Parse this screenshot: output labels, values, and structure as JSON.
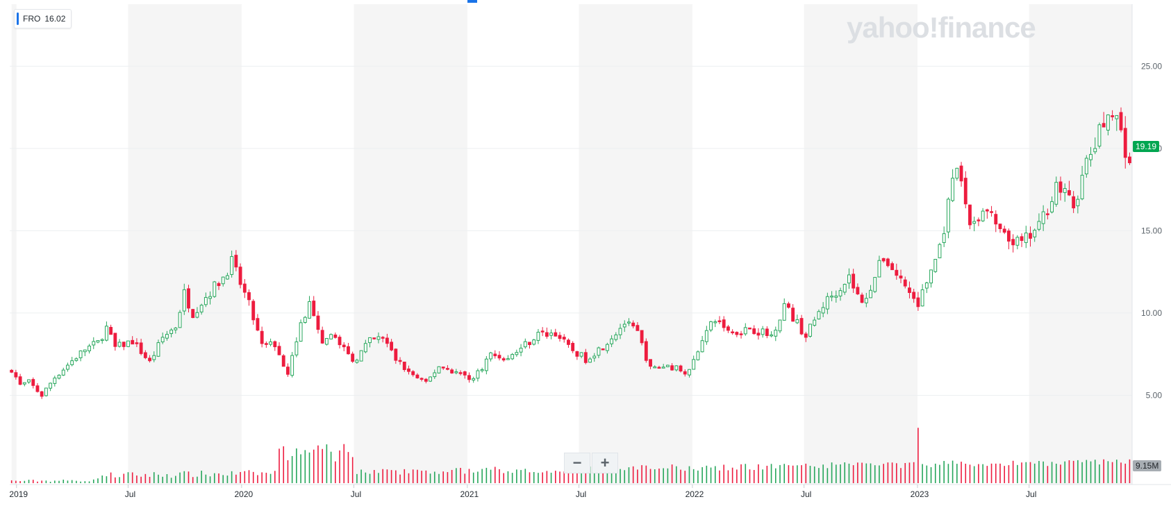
{
  "ticker": {
    "symbol": "FRO",
    "value": "16.02"
  },
  "brand": "yahoo!finance",
  "zoom": {
    "minus": "−",
    "plus": "+"
  },
  "last_price_label": "19.19",
  "last_volume_label": "9.15M",
  "colors": {
    "up": "#26a65b",
    "down": "#ed1c3f",
    "band": "#f5f5f5",
    "grid": "#eceff1",
    "price_tag": "#00a651"
  },
  "chart_data": {
    "type": "candlestick",
    "period": "weekly",
    "ylim": [
      3.5,
      27
    ],
    "yticks": [
      "5.00",
      "10.00",
      "15.00",
      "20.00",
      "25.00"
    ],
    "xticks": [
      "2019",
      "Jul",
      "2020",
      "Jul",
      "2021",
      "Jul",
      "2022",
      "Jul",
      "2023",
      "Jul"
    ],
    "first_week": "2018-12-24",
    "anchors": [
      [
        "2018-12-24",
        6.6
      ],
      [
        "2019-01-07",
        5.6
      ],
      [
        "2019-01-21",
        5.8
      ],
      [
        "2019-02-11",
        5.0
      ],
      [
        "2019-03-04",
        6.1
      ],
      [
        "2019-04-01",
        7.1
      ],
      [
        "2019-04-22",
        7.8
      ],
      [
        "2019-05-13",
        8.2
      ],
      [
        "2019-05-27",
        9.1
      ],
      [
        "2019-06-10",
        7.9
      ],
      [
        "2019-07-08",
        8.3
      ],
      [
        "2019-08-05",
        7.0
      ],
      [
        "2019-08-26",
        8.5
      ],
      [
        "2019-09-16",
        9.2
      ],
      [
        "2019-09-30",
        11.2
      ],
      [
        "2019-10-14",
        10.0
      ],
      [
        "2019-11-04",
        11.0
      ],
      [
        "2019-12-02",
        12.2
      ],
      [
        "2019-12-16",
        13.1
      ],
      [
        "2020-01-13",
        10.5
      ],
      [
        "2020-02-03",
        8.0
      ],
      [
        "2020-02-24",
        8.1
      ],
      [
        "2020-03-16",
        6.4
      ],
      [
        "2020-04-06",
        9.3
      ],
      [
        "2020-04-20",
        10.5
      ],
      [
        "2020-05-11",
        8.0
      ],
      [
        "2020-06-01",
        8.7
      ],
      [
        "2020-06-29",
        7.0
      ],
      [
        "2020-07-27",
        8.3
      ],
      [
        "2020-08-17",
        8.5
      ],
      [
        "2020-09-07",
        7.2
      ],
      [
        "2020-09-28",
        6.4
      ],
      [
        "2020-10-26",
        5.7
      ],
      [
        "2020-11-16",
        6.8
      ],
      [
        "2020-12-21",
        6.3
      ],
      [
        "2021-01-11",
        6.0
      ],
      [
        "2021-02-08",
        7.5
      ],
      [
        "2021-03-08",
        7.2
      ],
      [
        "2021-03-29",
        7.9
      ],
      [
        "2021-04-26",
        8.7
      ],
      [
        "2021-05-24",
        8.8
      ],
      [
        "2021-06-14",
        7.9
      ],
      [
        "2021-07-12",
        7.2
      ],
      [
        "2021-08-09",
        8.0
      ],
      [
        "2021-09-13",
        9.4
      ],
      [
        "2021-10-04",
        8.8
      ],
      [
        "2021-10-25",
        6.6
      ],
      [
        "2021-11-22",
        6.8
      ],
      [
        "2021-12-27",
        6.4
      ],
      [
        "2022-01-17",
        8.5
      ],
      [
        "2022-02-07",
        9.6
      ],
      [
        "2022-03-07",
        8.8
      ],
      [
        "2022-04-04",
        9.1
      ],
      [
        "2022-05-09",
        8.6
      ],
      [
        "2022-05-30",
        10.5
      ],
      [
        "2022-07-04",
        8.6
      ],
      [
        "2022-08-01",
        10.5
      ],
      [
        "2022-09-12",
        12.2
      ],
      [
        "2022-10-03",
        10.5
      ],
      [
        "2022-11-07",
        13.4
      ],
      [
        "2022-12-05",
        12.0
      ],
      [
        "2023-01-02",
        10.5
      ],
      [
        "2023-02-06",
        14.0
      ],
      [
        "2023-03-06",
        18.9
      ],
      [
        "2023-03-27",
        15.5
      ],
      [
        "2023-04-24",
        16.2
      ],
      [
        "2023-05-22",
        14.5
      ],
      [
        "2023-06-19",
        14.2
      ],
      [
        "2023-07-17",
        15.2
      ],
      [
        "2023-08-14",
        17.8
      ],
      [
        "2023-09-11",
        16.5
      ],
      [
        "2023-10-02",
        19.0
      ],
      [
        "2023-10-30",
        21.5
      ],
      [
        "2023-11-13",
        22.6
      ],
      [
        "2023-12-04",
        20.0
      ],
      [
        "2023-12-11",
        19.19
      ]
    ],
    "volume_peak": {
      "date": "2023-01-02",
      "value": "peak"
    }
  }
}
